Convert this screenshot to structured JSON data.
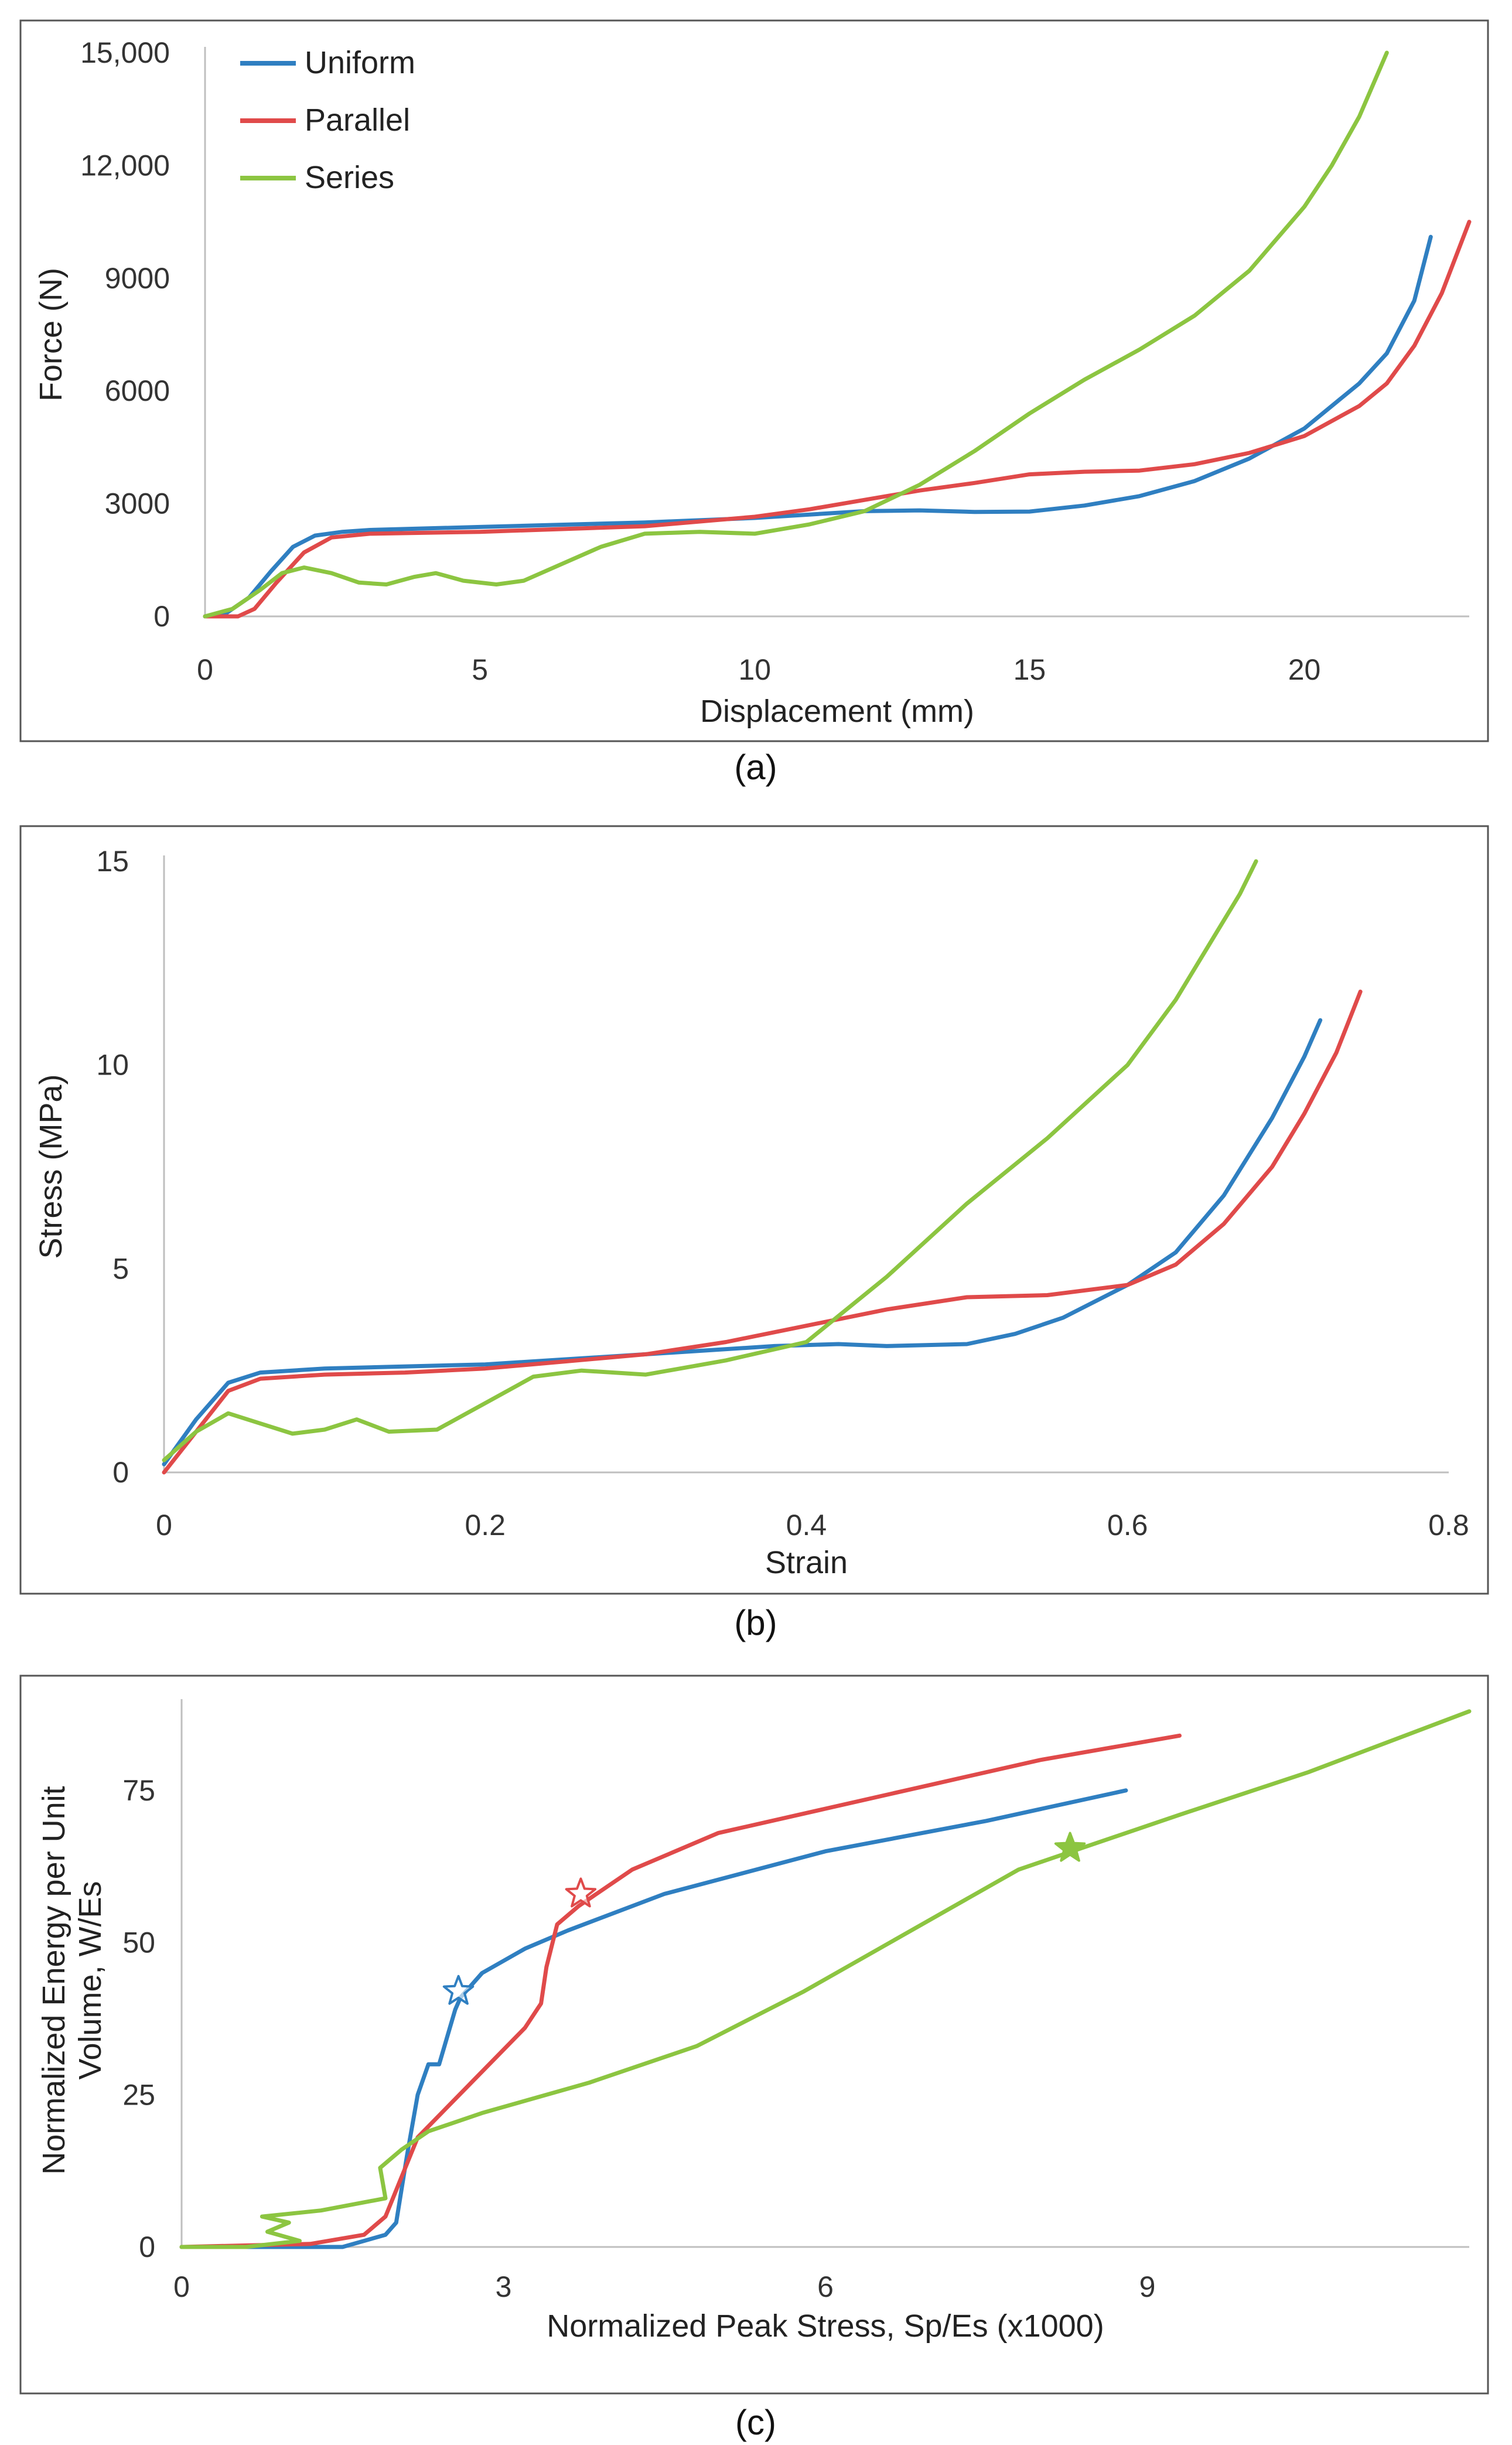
{
  "colors": {
    "Uniform": "#2f7fc1",
    "Parallel": "#e04a4a",
    "Series": "#8cc541"
  },
  "chart_data": [
    {
      "id": "a",
      "type": "line",
      "caption": "(a)",
      "xlabel": "Displacement (mm)",
      "ylabel": "Force (N)",
      "xlim": [
        0,
        23
      ],
      "ylim": [
        0,
        15000
      ],
      "xticks": [
        0,
        5,
        10,
        15,
        20
      ],
      "xtick_labels": [
        "0",
        "5",
        "10",
        "15",
        "20"
      ],
      "yticks": [
        0,
        3000,
        6000,
        9000,
        12000,
        15000
      ],
      "ytick_labels": [
        "0",
        "3000",
        "6000",
        "9000",
        "12,000",
        "15,000"
      ],
      "legend": {
        "position": "top-left",
        "entries": [
          "Uniform",
          "Parallel",
          "Series"
        ]
      },
      "series": [
        {
          "name": "Uniform",
          "x": [
            0,
            0.4,
            0.8,
            1.2,
            1.6,
            2.0,
            2.5,
            3,
            5,
            8,
            10,
            12,
            13,
            14,
            15,
            16,
            17,
            18,
            19,
            20,
            21,
            21.5,
            22.0,
            22.3
          ],
          "y": [
            0,
            100,
            500,
            1200,
            1850,
            2150,
            2250,
            2300,
            2380,
            2500,
            2620,
            2800,
            2820,
            2780,
            2790,
            2950,
            3200,
            3600,
            4200,
            5000,
            6200,
            7000,
            8400,
            10100
          ]
        },
        {
          "name": "Parallel",
          "x": [
            0,
            0.6,
            0.9,
            1.3,
            1.8,
            2.3,
            3,
            5,
            8,
            10,
            11,
            12,
            13,
            14,
            15,
            16,
            17,
            18,
            19,
            20,
            21,
            21.5,
            22,
            22.5,
            23
          ],
          "y": [
            0,
            0,
            200,
            900,
            1700,
            2100,
            2200,
            2250,
            2400,
            2650,
            2850,
            3100,
            3350,
            3550,
            3780,
            3850,
            3880,
            4050,
            4350,
            4800,
            5600,
            6200,
            7200,
            8600,
            10500
          ]
        },
        {
          "name": "Series",
          "x": [
            0,
            0.5,
            1.0,
            1.4,
            1.8,
            2.3,
            2.8,
            3.3,
            3.8,
            4.2,
            4.7,
            5.3,
            5.8,
            6.5,
            7.2,
            8,
            9,
            10,
            11,
            12,
            13,
            14,
            15,
            16,
            17,
            18,
            19,
            20,
            20.5,
            21,
            21.5
          ],
          "y": [
            0,
            200,
            700,
            1150,
            1300,
            1150,
            900,
            850,
            1050,
            1150,
            950,
            850,
            950,
            1400,
            1850,
            2200,
            2250,
            2200,
            2450,
            2800,
            3500,
            4400,
            5400,
            6300,
            7100,
            8000,
            9200,
            10900,
            12000,
            13300,
            15000
          ]
        }
      ]
    },
    {
      "id": "b",
      "type": "line",
      "caption": "(b)",
      "xlabel": "Strain",
      "ylabel": "Stress (MPa)",
      "xlim": [
        0,
        0.8
      ],
      "ylim": [
        0,
        15
      ],
      "xticks": [
        0,
        0.2,
        0.4,
        0.6,
        0.8
      ],
      "xtick_labels": [
        "0",
        "0.2",
        "0.4",
        "0.6",
        "0.8"
      ],
      "yticks": [
        0,
        5,
        10,
        15
      ],
      "ytick_labels": [
        "0",
        "5",
        "10",
        "15"
      ],
      "series": [
        {
          "name": "Uniform",
          "x": [
            0,
            0.02,
            0.04,
            0.06,
            0.08,
            0.1,
            0.2,
            0.3,
            0.38,
            0.42,
            0.45,
            0.5,
            0.53,
            0.56,
            0.6,
            0.63,
            0.66,
            0.69,
            0.71,
            0.72
          ],
          "y": [
            0.2,
            1.3,
            2.2,
            2.45,
            2.5,
            2.55,
            2.65,
            2.9,
            3.1,
            3.15,
            3.1,
            3.15,
            3.4,
            3.8,
            4.6,
            5.4,
            6.8,
            8.7,
            10.2,
            11.1
          ]
        },
        {
          "name": "Parallel",
          "x": [
            0,
            0.02,
            0.04,
            0.06,
            0.1,
            0.15,
            0.2,
            0.3,
            0.35,
            0.4,
            0.45,
            0.5,
            0.55,
            0.6,
            0.63,
            0.66,
            0.69,
            0.71,
            0.73,
            0.745
          ],
          "y": [
            0,
            1.0,
            2.0,
            2.3,
            2.4,
            2.45,
            2.55,
            2.9,
            3.2,
            3.6,
            4.0,
            4.3,
            4.35,
            4.6,
            5.1,
            6.1,
            7.5,
            8.8,
            10.3,
            11.8
          ]
        },
        {
          "name": "Series",
          "x": [
            0,
            0.02,
            0.04,
            0.06,
            0.08,
            0.1,
            0.12,
            0.14,
            0.17,
            0.2,
            0.23,
            0.26,
            0.3,
            0.35,
            0.4,
            0.45,
            0.5,
            0.55,
            0.6,
            0.63,
            0.65,
            0.67,
            0.68
          ],
          "y": [
            0.3,
            1.0,
            1.45,
            1.2,
            0.95,
            1.05,
            1.3,
            1.0,
            1.05,
            1.7,
            2.35,
            2.5,
            2.4,
            2.75,
            3.2,
            4.8,
            6.6,
            8.2,
            10.0,
            11.6,
            12.9,
            14.2,
            15.0
          ]
        }
      ]
    },
    {
      "id": "c",
      "type": "line",
      "caption": "(c)",
      "xlabel": "Normalized Peak Stress, Sp/Es (x1000)",
      "ylabel_lines": [
        "Normalized Energy per Unit",
        "Volume, W/Es"
      ],
      "xlim": [
        0,
        12
      ],
      "ylim": [
        0,
        90
      ],
      "xticks": [
        0,
        3,
        6,
        9
      ],
      "xtick_labels": [
        "0",
        "3",
        "6",
        "9"
      ],
      "yticks": [
        0,
        25,
        50,
        75
      ],
      "ytick_labels": [
        "0",
        "25",
        "50",
        "75"
      ],
      "series": [
        {
          "name": "Uniform",
          "x": [
            0,
            1.5,
            1.9,
            2.0,
            2.1,
            2.2,
            2.3,
            2.4,
            2.5,
            2.55,
            2.6,
            2.8,
            3.2,
            3.6,
            4.5,
            6,
            7.5,
            8.8
          ],
          "y": [
            0,
            0,
            2,
            4,
            15,
            25,
            30,
            30,
            36,
            39,
            41,
            45,
            49,
            52,
            58,
            65,
            70,
            75
          ]
        },
        {
          "name": "Parallel",
          "x": [
            0,
            1.2,
            1.7,
            1.9,
            2.2,
            2.7,
            3.2,
            3.35,
            3.4,
            3.5,
            3.7,
            4.2,
            5,
            6,
            7,
            8,
            9.3
          ],
          "y": [
            0,
            0.5,
            2,
            5,
            18,
            27,
            36,
            40,
            46,
            53,
            56,
            62,
            68,
            72,
            76,
            80,
            84
          ]
        },
        {
          "name": "Series",
          "x": [
            0,
            0.6,
            1.1,
            0.8,
            1.0,
            0.75,
            1.3,
            1.9,
            1.85,
            2.05,
            2.3,
            2.8,
            3.8,
            4.8,
            5.8,
            6.8,
            7.8,
            8.3,
            9.3,
            10.5,
            12.0
          ],
          "y": [
            0,
            0,
            1,
            2.5,
            4,
            5,
            6,
            8,
            13,
            16,
            19,
            22,
            27,
            33,
            42,
            52,
            62,
            65,
            71,
            78,
            88
          ]
        }
      ],
      "markers": [
        {
          "series": "Uniform",
          "x": 2.58,
          "y": 42,
          "shape": "star",
          "filled": false
        },
        {
          "series": "Parallel",
          "x": 3.72,
          "y": 58,
          "shape": "star",
          "filled": false
        },
        {
          "series": "Series",
          "x": 8.28,
          "y": 65.5,
          "shape": "star",
          "filled": true
        }
      ]
    }
  ]
}
